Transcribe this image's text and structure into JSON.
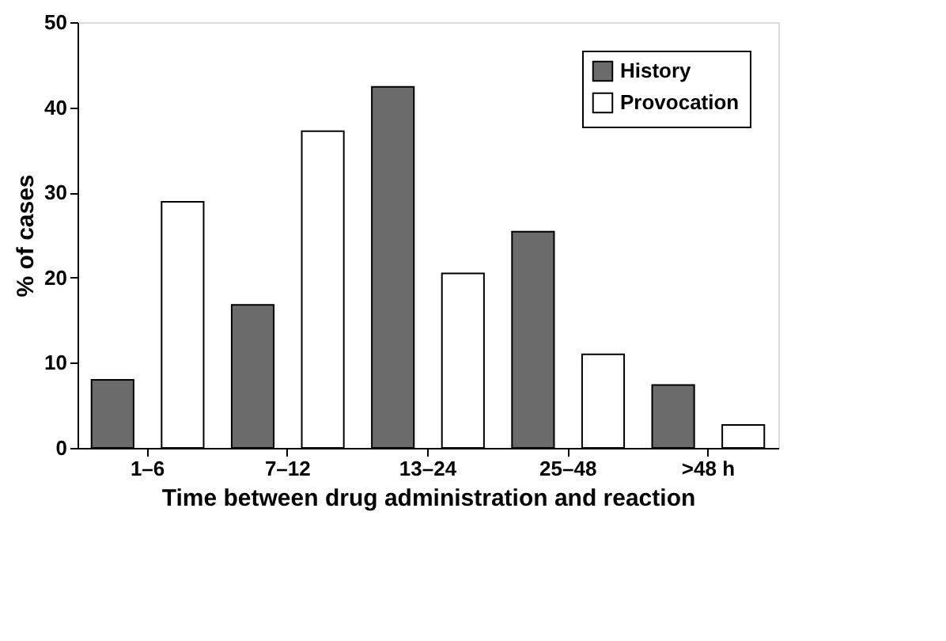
{
  "chart_data": {
    "type": "bar",
    "xlabel": "Time between drug administration and reaction",
    "ylabel": "% of cases",
    "categories": [
      "1–6",
      "7–12",
      "13–24",
      "25–48",
      ">48 h"
    ],
    "series": [
      {
        "name": "History",
        "color": "#6b6b6b",
        "values": [
          8.0,
          16.8,
          42.4,
          25.4,
          7.4
        ]
      },
      {
        "name": "Provocation",
        "color": "#ffffff",
        "values": [
          28.9,
          37.2,
          20.5,
          11.0,
          2.7
        ]
      }
    ],
    "ylim": [
      0,
      50
    ],
    "yticks": [
      0,
      10,
      20,
      30,
      40,
      50
    ],
    "grid": false,
    "legend": "top right"
  }
}
